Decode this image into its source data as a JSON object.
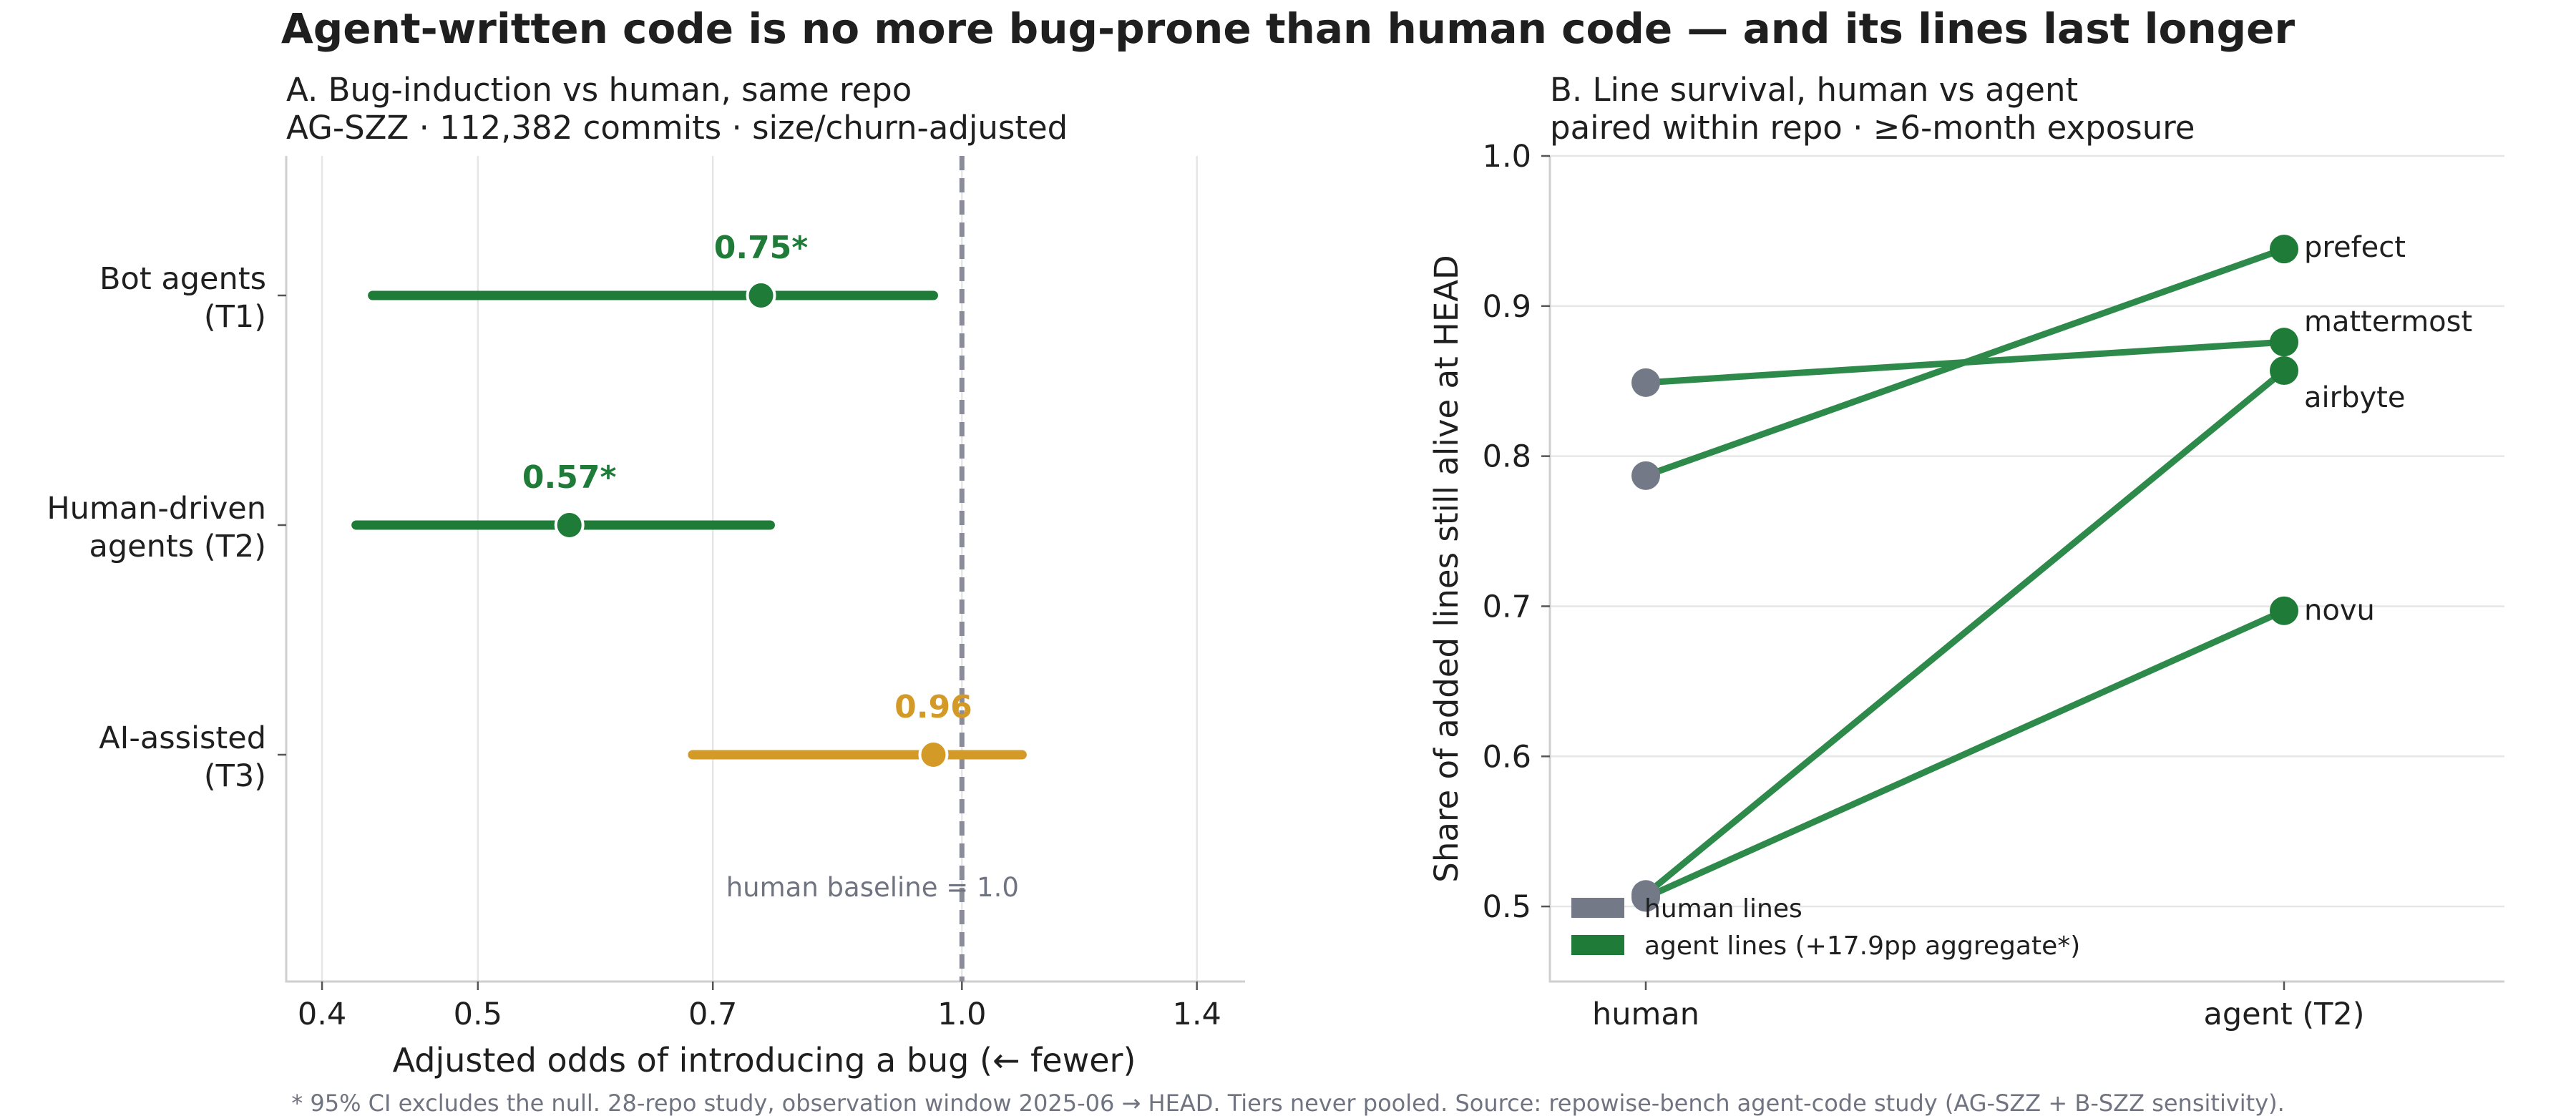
{
  "title": "Agent-written code is no more bug-prone than human code — and its lines last longer",
  "footnote": "* 95% CI excludes the null.  28-repo study, observation window 2025-06 → HEAD.  Tiers never pooled.  Source: repowise-bench agent-code study (AG-SZZ + B-SZZ sensitivity).",
  "colors": {
    "green": "#1e7b38",
    "gold": "#d49a27",
    "human_gray": "#737986",
    "slope_green": "#2e8a4a",
    "baseline": "#8a8c9a"
  },
  "chart_data": [
    {
      "type": "forest",
      "title": "A.  Bug-induction vs human, same repo",
      "subtitle": "AG-SZZ · 112,382 commits · size/churn-adjusted",
      "xlabel": "Adjusted odds of introducing a bug  (← fewer)",
      "xscale": "log",
      "xlim": [
        0.38,
        1.5
      ],
      "xticks": [
        0.4,
        0.5,
        0.7,
        1.0,
        1.4
      ],
      "xtick_labels": [
        "0.4",
        "0.5",
        "0.7",
        "1.0",
        "1.4"
      ],
      "grid": "vertical",
      "reference_line": {
        "x": 1.0,
        "label": "human baseline = 1.0"
      },
      "rows": [
        {
          "label_line1": "Bot agents",
          "label_line2": "(T1)",
          "estimate": 0.75,
          "ci": [
            0.43,
            0.96
          ],
          "value_label": "0.75*",
          "color": "#1e7b38"
        },
        {
          "label_line1": "Human-driven",
          "label_line2": "agents (T2)",
          "estimate": 0.57,
          "ci": [
            0.42,
            0.76
          ],
          "value_label": "0.57*",
          "color": "#1e7b38"
        },
        {
          "label_line1": "AI-assisted",
          "label_line2": "(T3)",
          "estimate": 0.96,
          "ci": [
            0.68,
            1.09
          ],
          "value_label": "0.96",
          "color": "#d49a27"
        }
      ]
    },
    {
      "type": "slope",
      "title": "B.  Line survival, human vs agent",
      "subtitle": "paired within repo · ≥6-month exposure",
      "ylabel": "Share of added lines still alive at HEAD",
      "categories": [
        "human",
        "agent (T2)"
      ],
      "ylim": [
        0.45,
        1.0
      ],
      "yticks": [
        0.5,
        0.6,
        0.7,
        0.8,
        0.9,
        1.0
      ],
      "ytick_labels": [
        "0.5",
        "0.6",
        "0.7",
        "0.8",
        "0.9",
        "1.0"
      ],
      "grid": "horizontal",
      "series": [
        {
          "name": "prefect",
          "values": [
            0.787,
            0.938
          ]
        },
        {
          "name": "mattermost",
          "values": [
            0.849,
            0.876
          ]
        },
        {
          "name": "airbyte",
          "values": [
            0.508,
            0.857
          ]
        },
        {
          "name": "novu",
          "values": [
            0.506,
            0.697
          ]
        }
      ],
      "legend": {
        "placement": "lower-left",
        "items": [
          "human lines",
          "agent lines (+17.9pp aggregate*)"
        ]
      }
    }
  ]
}
